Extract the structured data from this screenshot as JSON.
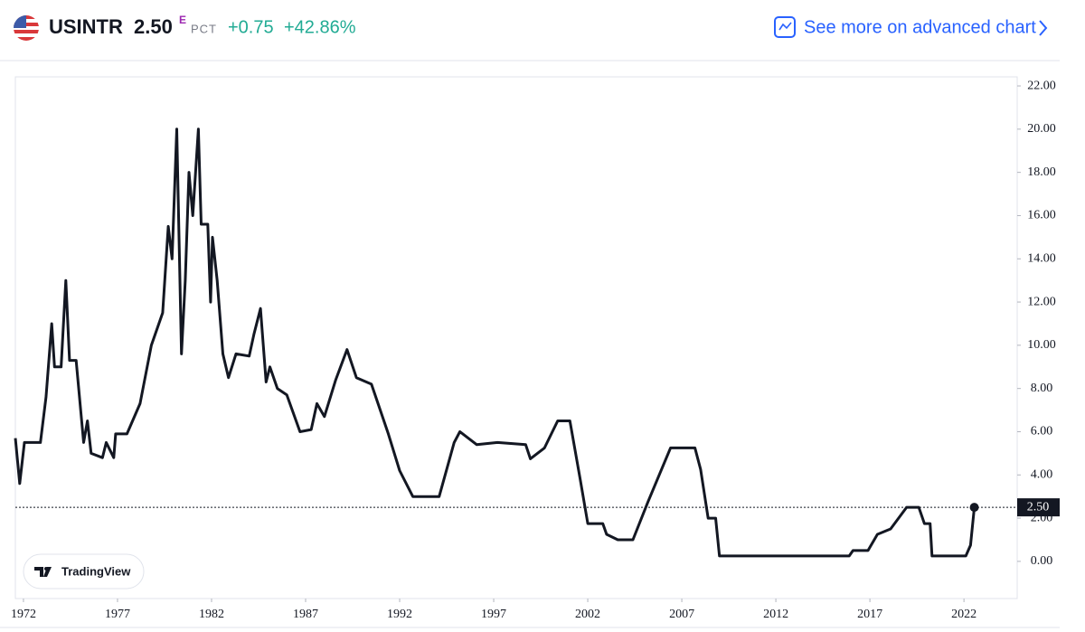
{
  "header": {
    "symbol": "USINTR",
    "value": "2.50",
    "superscript": "E",
    "unit": "PCT",
    "change": "+0.75",
    "change_pct": "+42.86%",
    "link": "See more on advanced chart"
  },
  "badge": "TradingView",
  "chart_data": {
    "type": "line",
    "color": "#131722",
    "x": [
      1971.57,
      1971.8,
      1972.05,
      1972.9,
      1973.2,
      1973.5,
      1973.65,
      1974.0,
      1974.25,
      1974.45,
      1974.8,
      1975.2,
      1975.4,
      1975.6,
      1976.2,
      1976.4,
      1976.8,
      1976.9,
      1977.5,
      1978.2,
      1978.8,
      1979.4,
      1979.7,
      1979.9,
      1980.15,
      1980.4,
      1980.6,
      1980.8,
      1981.0,
      1981.3,
      1981.45,
      1981.8,
      1981.95,
      1982.05,
      1982.3,
      1982.6,
      1982.9,
      1983.3,
      1984.0,
      1984.25,
      1984.6,
      1984.9,
      1985.1,
      1985.5,
      1986.0,
      1986.7,
      1987.3,
      1987.6,
      1988.0,
      1988.6,
      1989.2,
      1989.7,
      1990.5,
      1991.4,
      1992.0,
      1992.7,
      1994.1,
      1994.9,
      1995.2,
      1996.1,
      1997.2,
      1998.7,
      1998.95,
      1999.7,
      2000.4,
      2001.05,
      2001.6,
      2002.0,
      2002.8,
      2003.0,
      2003.6,
      2004.4,
      2005.2,
      2006.4,
      2007.7,
      2008.0,
      2008.4,
      2008.8,
      2009.0,
      2015.9,
      2016.1,
      2016.9,
      2017.4,
      2018.1,
      2018.95,
      2019.6,
      2019.9,
      2020.2,
      2020.3,
      2022.1,
      2022.35,
      2022.55
    ],
    "values": [
      5.7,
      3.6,
      5.5,
      5.5,
      7.6,
      11,
      9,
      9,
      13,
      9.3,
      9.3,
      5.5,
      6.5,
      5,
      4.8,
      5.5,
      4.8,
      5.9,
      5.9,
      7.3,
      10,
      11.5,
      15.5,
      14,
      20,
      9.6,
      13,
      18,
      16,
      20,
      15.6,
      15.6,
      12,
      15,
      13,
      9.6,
      8.5,
      9.6,
      9.5,
      10.5,
      11.7,
      8.3,
      9,
      8,
      7.7,
      6,
      6.1,
      7.3,
      6.7,
      8.4,
      9.8,
      8.5,
      8.2,
      5.9,
      4.2,
      3,
      3,
      5.5,
      6,
      5.4,
      5.5,
      5.4,
      4.75,
      5.25,
      6.5,
      6.5,
      3.8,
      1.75,
      1.75,
      1.25,
      1,
      1,
      2.75,
      5.25,
      5.25,
      4.25,
      2,
      2,
      0.25,
      0.25,
      0.5,
      0.5,
      1.25,
      1.5,
      2.5,
      2.5,
      1.75,
      1.75,
      0.25,
      0.25,
      0.75,
      2.5
    ],
    "xlim": [
      1971.57,
      2024.83
    ],
    "ylim": [
      -1.72,
      22.42
    ],
    "xticks": [
      1972,
      1977,
      1982,
      1987,
      1992,
      1997,
      2002,
      2007,
      2012,
      2017,
      2022
    ],
    "yticks": [
      {
        "value": 0,
        "label": "0.00"
      },
      {
        "value": 2,
        "label": "2.00"
      },
      {
        "value": 4,
        "label": "4.00"
      },
      {
        "value": 6,
        "label": "6.00"
      },
      {
        "value": 8,
        "label": "8.00"
      },
      {
        "value": 10,
        "label": "10.00"
      },
      {
        "value": 12,
        "label": "12.00"
      },
      {
        "value": 14,
        "label": "14.00"
      },
      {
        "value": 16,
        "label": "16.00"
      },
      {
        "value": 18,
        "label": "18.00"
      },
      {
        "value": 20,
        "label": "20.00"
      },
      {
        "value": 22,
        "label": "22.00"
      }
    ],
    "marker": {
      "value": 2.5,
      "label": "2.50"
    }
  }
}
